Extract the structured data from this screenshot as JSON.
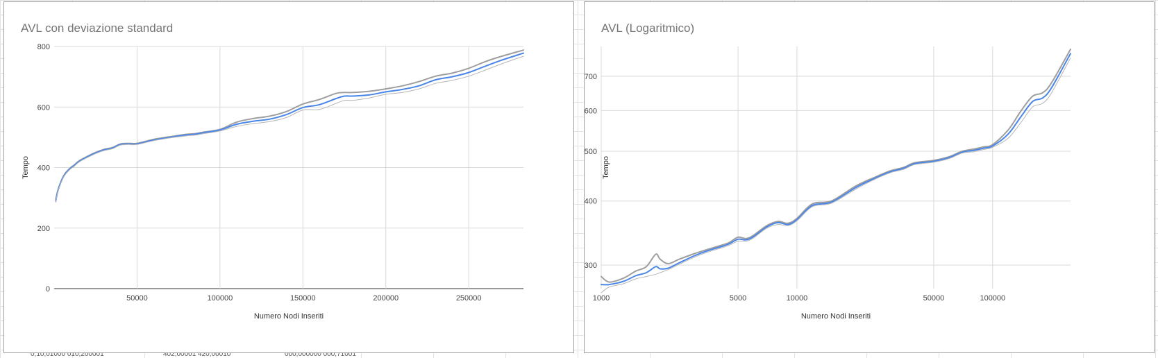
{
  "chart_data": [
    {
      "type": "line",
      "title": "AVL con deviazione standard",
      "xlabel": "Numero Nodi Inseriti",
      "ylabel": "Tempo",
      "xlim": [
        0,
        283000
      ],
      "ylim": [
        0,
        800
      ],
      "x_ticks": [
        50000,
        100000,
        150000,
        200000,
        250000
      ],
      "y_ticks": [
        0,
        200,
        400,
        600,
        800
      ],
      "grid": true,
      "series": [
        {
          "color": "#9e9e9e",
          "x": [
            1000,
            2000,
            3000,
            5000,
            7000,
            10000,
            12000,
            15000,
            20000,
            25000,
            30000,
            35000,
            40000,
            45000,
            50000,
            60000,
            70000,
            80000,
            85000,
            90000,
            100000,
            110000,
            120000,
            130000,
            140000,
            150000,
            160000,
            170000,
            175000,
            180000,
            190000,
            200000,
            210000,
            220000,
            230000,
            240000,
            250000,
            260000,
            270000,
            283000
          ],
          "values": [
            295,
            320,
            338,
            365,
            383,
            400,
            408,
            422,
            437,
            450,
            460,
            466,
            478,
            480,
            480,
            493,
            502,
            510,
            512,
            517,
            526,
            550,
            562,
            570,
            585,
            610,
            625,
            645,
            648,
            648,
            652,
            660,
            670,
            684,
            702,
            712,
            728,
            750,
            768,
            788
          ]
        },
        {
          "color": "#4a86e8",
          "x": [
            1000,
            2000,
            3000,
            5000,
            7000,
            10000,
            12000,
            15000,
            20000,
            25000,
            30000,
            35000,
            40000,
            45000,
            50000,
            60000,
            70000,
            80000,
            85000,
            90000,
            100000,
            110000,
            120000,
            130000,
            140000,
            150000,
            160000,
            170000,
            175000,
            180000,
            190000,
            200000,
            210000,
            220000,
            230000,
            240000,
            250000,
            260000,
            270000,
            283000
          ],
          "values": [
            290,
            318,
            336,
            363,
            381,
            398,
            406,
            420,
            435,
            448,
            458,
            464,
            476,
            478,
            478,
            491,
            500,
            508,
            510,
            515,
            524,
            543,
            553,
            560,
            575,
            598,
            608,
            628,
            636,
            636,
            640,
            650,
            658,
            670,
            690,
            700,
            714,
            735,
            755,
            778
          ]
        },
        {
          "color": "#b5b5b5",
          "x": [
            1000,
            2000,
            3000,
            5000,
            7000,
            10000,
            12000,
            15000,
            20000,
            25000,
            30000,
            35000,
            40000,
            45000,
            50000,
            60000,
            70000,
            80000,
            85000,
            90000,
            100000,
            110000,
            120000,
            130000,
            140000,
            150000,
            160000,
            170000,
            175000,
            180000,
            190000,
            200000,
            210000,
            220000,
            230000,
            240000,
            250000,
            260000,
            270000,
            283000
          ],
          "values": [
            285,
            316,
            334,
            361,
            379,
            396,
            404,
            418,
            433,
            446,
            456,
            462,
            474,
            476,
            476,
            489,
            498,
            505,
            507,
            512,
            521,
            536,
            545,
            552,
            565,
            590,
            592,
            612,
            622,
            622,
            630,
            642,
            648,
            660,
            678,
            688,
            702,
            722,
            743,
            768
          ]
        }
      ]
    },
    {
      "type": "line",
      "title": "AVL (Logaritmico)",
      "xlabel": "Numero Nodi Inseriti",
      "ylabel": "Tempo",
      "x_scale": "log",
      "y_scale": "log",
      "xlim": [
        1000,
        250000
      ],
      "ylim": [
        270,
        800
      ],
      "x_ticks": [
        1000,
        5000,
        10000,
        50000,
        100000
      ],
      "y_ticks": [
        300,
        400,
        500,
        600,
        700
      ],
      "grid": true,
      "series": [
        {
          "color": "#9e9e9e",
          "x": [
            1000,
            1100,
            1300,
            1500,
            1700,
            1900,
            2000,
            2200,
            2500,
            3000,
            3500,
            4000,
            4500,
            5000,
            5500,
            6000,
            7000,
            8000,
            9000,
            10000,
            12000,
            15000,
            20000,
            25000,
            30000,
            35000,
            40000,
            50000,
            60000,
            70000,
            80000,
            90000,
            100000,
            120000,
            140000,
            160000,
            180000,
            200000,
            250000
          ],
          "values": [
            285,
            278,
            283,
            292,
            298,
            315,
            308,
            302,
            308,
            316,
            322,
            327,
            332,
            340,
            338,
            343,
            358,
            365,
            362,
            370,
            395,
            400,
            428,
            445,
            458,
            465,
            475,
            480,
            488,
            500,
            505,
            510,
            515,
            550,
            600,
            640,
            650,
            680,
            790
          ]
        },
        {
          "color": "#4a86e8",
          "x": [
            1000,
            1100,
            1300,
            1500,
            1700,
            1900,
            2000,
            2200,
            2500,
            3000,
            3500,
            4000,
            4500,
            5000,
            5500,
            6000,
            7000,
            8000,
            9000,
            10000,
            12000,
            15000,
            20000,
            25000,
            30000,
            35000,
            40000,
            50000,
            60000,
            70000,
            80000,
            90000,
            100000,
            120000,
            140000,
            160000,
            180000,
            200000,
            250000
          ],
          "values": [
            275,
            275,
            279,
            286,
            290,
            298,
            295,
            296,
            303,
            313,
            320,
            325,
            330,
            337,
            336,
            341,
            356,
            363,
            360,
            368,
            392,
            398,
            425,
            443,
            456,
            463,
            473,
            478,
            486,
            498,
            502,
            507,
            512,
            540,
            585,
            625,
            635,
            665,
            775
          ]
        },
        {
          "color": "#b5b5b5",
          "x": [
            1000,
            1100,
            1300,
            1500,
            1700,
            1900,
            2000,
            2200,
            2500,
            3000,
            3500,
            4000,
            4500,
            5000,
            5500,
            6000,
            7000,
            8000,
            9000,
            10000,
            12000,
            15000,
            20000,
            25000,
            30000,
            35000,
            40000,
            50000,
            60000,
            70000,
            80000,
            90000,
            100000,
            120000,
            140000,
            160000,
            180000,
            200000,
            250000
          ],
          "values": [
            265,
            272,
            276,
            282,
            285,
            288,
            290,
            294,
            301,
            311,
            318,
            323,
            328,
            334,
            334,
            339,
            354,
            360,
            358,
            366,
            390,
            396,
            422,
            441,
            454,
            461,
            471,
            476,
            484,
            496,
            499,
            504,
            509,
            530,
            570,
            610,
            620,
            650,
            760
          ]
        }
      ]
    }
  ]
}
